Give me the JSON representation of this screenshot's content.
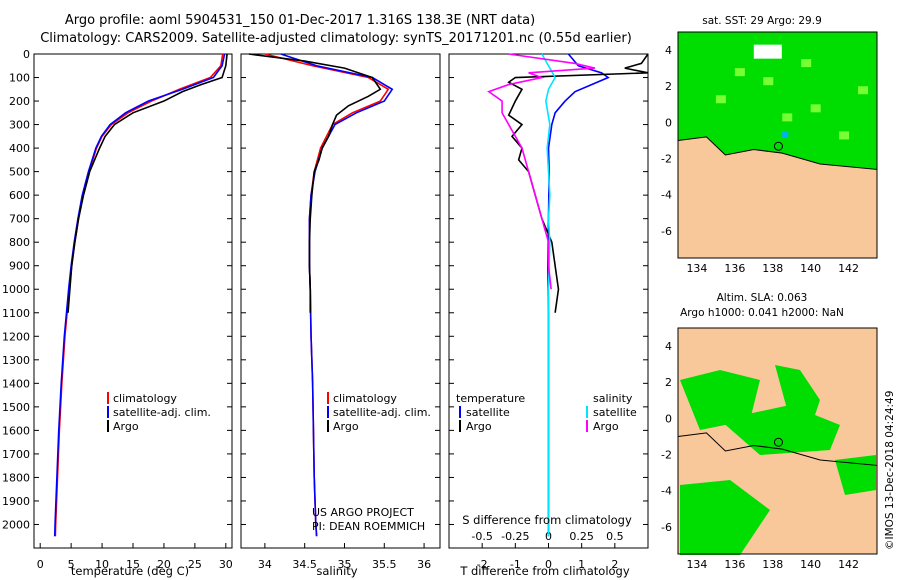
{
  "header": {
    "line1": "Argo profile: aoml 5904531_150 01-Dec-2017 1.316S 138.3E (NRT data)",
    "line2": "Climatology: CARS2009. Satellite-adjusted climatology: synTS_20171201.nc (0.55d earlier)"
  },
  "credit": {
    "line1": "US ARGO PROJECT",
    "line2": "PI: DEAN ROEMMICH",
    "footer": "©IMOS 13-Dec-2018 04:24:49"
  },
  "colors": {
    "climatology": "#ff0000",
    "satellite": "#0000ff",
    "argo": "#000000",
    "sat_salinity": "#00e5ff",
    "argo_salinity": "#ff00ff",
    "map_land": "#f8c79a",
    "map_green": "#00dd00",
    "map_light_green": "#77ff33",
    "map_blue": "#00b0ff",
    "map_white": "#ffffff"
  },
  "chart_data": [
    {
      "id": "temperature",
      "type": "line",
      "xlabel": "temperature (deg C)",
      "ylabel": "",
      "xlim": [
        -1,
        31
      ],
      "ylim": [
        2100,
        0
      ],
      "xticks": [
        0,
        5,
        10,
        15,
        20,
        25,
        30
      ],
      "yticks": [
        0,
        100,
        200,
        300,
        400,
        500,
        600,
        700,
        800,
        900,
        1000,
        1100,
        1200,
        1300,
        1400,
        1500,
        1600,
        1700,
        1800,
        1900,
        2000
      ],
      "legend": [
        "climatology",
        "satellite-adj. clim.",
        "Argo"
      ],
      "series": [
        {
          "name": "climatology",
          "color": "#ff0000",
          "y": [
            0,
            50,
            100,
            150,
            200,
            250,
            300,
            350,
            400,
            500,
            600,
            700,
            800,
            900,
            1000,
            1200,
            1400,
            1600,
            1800,
            2000,
            2050
          ],
          "x": [
            29.5,
            29.2,
            27.5,
            22.5,
            18,
            14.2,
            11.5,
            10,
            9.1,
            7.9,
            6.9,
            6.2,
            5.6,
            5.1,
            4.7,
            4.0,
            3.5,
            3.1,
            2.8,
            2.5,
            2.45
          ]
        },
        {
          "name": "satellite-adj. clim.",
          "color": "#0000ff",
          "y": [
            0,
            50,
            100,
            150,
            200,
            250,
            300,
            350,
            400,
            500,
            600,
            700,
            800,
            900,
            1000,
            1200,
            1400,
            1600,
            1800,
            2000,
            2050
          ],
          "x": [
            29.8,
            29.4,
            28,
            23,
            17.5,
            13.8,
            11.3,
            9.9,
            9.0,
            7.8,
            6.8,
            6.1,
            5.5,
            5.0,
            4.6,
            3.9,
            3.4,
            3.0,
            2.7,
            2.4,
            2.35
          ]
        },
        {
          "name": "Argo",
          "color": "#000000",
          "y": [
            0,
            50,
            100,
            130,
            160,
            200,
            250,
            300,
            350,
            400,
            450,
            500,
            600,
            700,
            800,
            900,
            1000,
            1100
          ],
          "x": [
            30.2,
            30.0,
            29.4,
            26,
            23,
            20,
            15,
            12,
            10.5,
            9.6,
            8.8,
            8.0,
            7.0,
            6.2,
            5.6,
            5.1,
            4.8,
            4.5
          ]
        }
      ]
    },
    {
      "id": "salinity",
      "type": "line",
      "xlabel": "salinity",
      "xlim": [
        33.7,
        36.2
      ],
      "ylim": [
        2100,
        0
      ],
      "xticks": [
        34,
        34.5,
        35,
        35.5,
        36
      ],
      "legend": [
        "climatology",
        "satellite-adj. clim.",
        "Argo"
      ],
      "series": [
        {
          "name": "climatology",
          "color": "#ff0000",
          "y": [
            0,
            50,
            100,
            150,
            200,
            250,
            300,
            400,
            500,
            600,
            700,
            800,
            900,
            1000,
            1200,
            1400,
            1600,
            1800,
            2000,
            2050
          ],
          "x": [
            34.0,
            34.6,
            35.3,
            35.55,
            35.45,
            35.1,
            34.85,
            34.7,
            34.62,
            34.58,
            34.56,
            34.56,
            34.56,
            34.57,
            34.58,
            34.6,
            34.61,
            34.62,
            34.64,
            34.65
          ]
        },
        {
          "name": "satellite-adj. clim.",
          "color": "#0000ff",
          "y": [
            0,
            50,
            100,
            150,
            200,
            250,
            300,
            400,
            500,
            600,
            700,
            800,
            900,
            1000,
            1200,
            1400,
            1600,
            1800,
            2000,
            2050
          ],
          "x": [
            34.2,
            34.65,
            35.35,
            35.6,
            35.5,
            35.15,
            34.88,
            34.72,
            34.63,
            34.58,
            34.56,
            34.56,
            34.56,
            34.57,
            34.58,
            34.6,
            34.61,
            34.62,
            34.64,
            34.65
          ]
        },
        {
          "name": "Argo",
          "color": "#000000",
          "y": [
            0,
            30,
            60,
            100,
            150,
            180,
            220,
            260,
            300,
            350,
            400,
            450,
            500,
            600,
            700,
            800,
            900,
            1000,
            1100
          ],
          "x": [
            33.8,
            34.5,
            35.0,
            35.35,
            35.45,
            35.3,
            35.05,
            34.9,
            34.85,
            34.8,
            34.72,
            34.68,
            34.62,
            34.59,
            34.57,
            34.56,
            34.56,
            34.57,
            34.57
          ]
        }
      ]
    },
    {
      "id": "difference",
      "type": "line",
      "xlabel": "T difference from climatology",
      "secondary_xlabel": "S difference from climatology",
      "xlim": [
        -3,
        3
      ],
      "ylim": [
        2100,
        0
      ],
      "xticks": [
        -2,
        -1,
        0,
        1,
        2
      ],
      "secondary_xticks": [
        -0.5,
        -0.25,
        0,
        0.25,
        0.5
      ],
      "legend": {
        "temperature_title": "temperature",
        "salinity_title": "salinity",
        "temperature": [
          "satellite",
          "Argo"
        ],
        "salinity": [
          "satellite",
          "Argo"
        ]
      },
      "series": [
        {
          "name": "T satellite",
          "color": "#0000ff",
          "y": [
            0,
            50,
            80,
            100,
            130,
            160,
            200,
            250,
            300,
            400,
            500,
            700,
            900,
            1100,
            1400,
            1700,
            2000,
            2050
          ],
          "x": [
            0.6,
            0.9,
            1.6,
            1.8,
            1.3,
            0.8,
            0.5,
            0.2,
            0.1,
            0.0,
            0.02,
            0.0,
            -0.02,
            0.0,
            0.0,
            0.0,
            0.0,
            0.0
          ]
        },
        {
          "name": "T Argo",
          "color": "#000000",
          "y": [
            0,
            40,
            60,
            80,
            100,
            120,
            150,
            200,
            260,
            300,
            350,
            400,
            450,
            500,
            600,
            700,
            800,
            900,
            1000,
            1100
          ],
          "x": [
            3.0,
            2.8,
            2.3,
            3.0,
            -1.0,
            -1.2,
            -0.8,
            -1.0,
            -1.2,
            -0.8,
            -1.1,
            -0.8,
            -0.9,
            -0.6,
            -0.4,
            -0.2,
            0.1,
            0.2,
            0.3,
            0.2
          ]
        },
        {
          "name": "S satellite",
          "color": "#00e5ff",
          "y": [
            0,
            50,
            100,
            150,
            200,
            300,
            400,
            500,
            600,
            700,
            800,
            1000,
            1200,
            1500,
            1800,
            2000,
            2050
          ],
          "x": [
            -0.05,
            0.0,
            0.05,
            0.0,
            -0.02,
            0.01,
            -0.01,
            0.0,
            0.01,
            0.0,
            0.01,
            0.0,
            0.0,
            0.0,
            0.0,
            0.0,
            0.0
          ]
        },
        {
          "name": "S Argo",
          "color": "#ff00ff",
          "y": [
            0,
            40,
            60,
            80,
            100,
            130,
            160,
            200,
            250,
            300,
            350,
            400,
            500,
            600,
            700,
            800,
            900,
            1000
          ],
          "x": [
            -0.3,
            0.2,
            0.35,
            -0.15,
            -0.05,
            -0.3,
            -0.45,
            -0.35,
            -0.35,
            -0.3,
            -0.25,
            -0.2,
            -0.15,
            -0.1,
            -0.05,
            0.0,
            0.0,
            0.02
          ]
        }
      ]
    },
    {
      "id": "sst_map",
      "type": "heatmap",
      "title": "sat. SST: 29 Argo: 29.9",
      "xlim": [
        133,
        143.5
      ],
      "ylim": [
        -7.5,
        5
      ],
      "xticks": [
        134,
        136,
        138,
        140,
        142
      ],
      "yticks": [
        -6,
        -4,
        -2,
        0,
        2,
        4
      ],
      "argo_position": {
        "lon": 138.3,
        "lat": -1.316
      }
    },
    {
      "id": "sla_map",
      "type": "heatmap",
      "title": "Altim. SLA: 0.063",
      "subtitle": "Argo h1000: 0.041 h2000: NaN",
      "xlim": [
        133,
        143.5
      ],
      "ylim": [
        -7.5,
        5
      ],
      "xticks": [
        134,
        136,
        138,
        140,
        142
      ],
      "yticks": [
        -6,
        -4,
        -2,
        0,
        2,
        4
      ],
      "argo_position": {
        "lon": 138.3,
        "lat": -1.316
      }
    }
  ]
}
